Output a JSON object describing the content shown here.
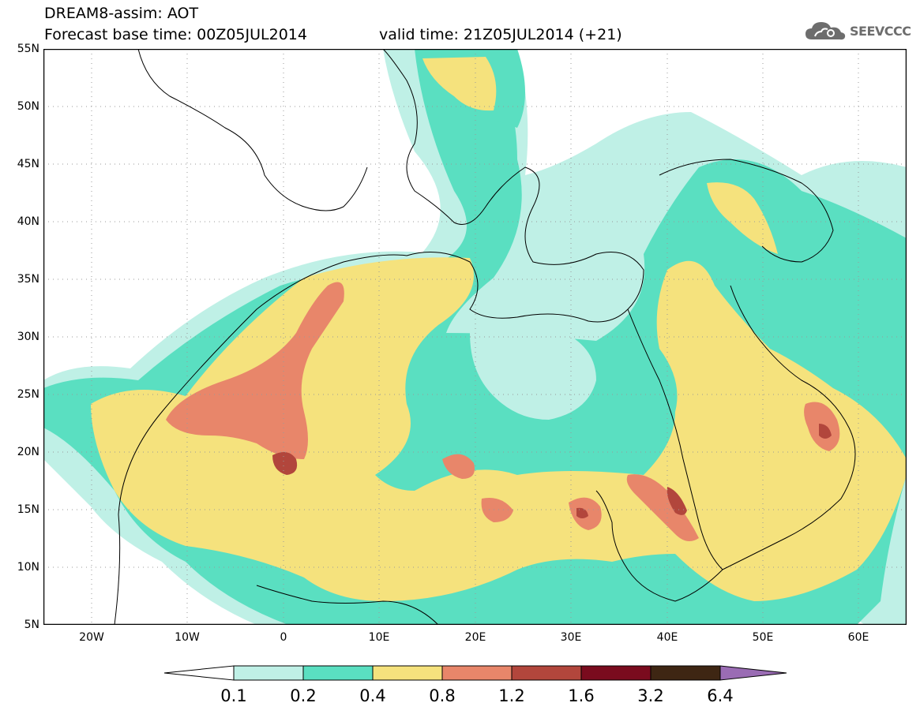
{
  "header": {
    "title_line1": "DREAM8-assim: AOT",
    "title_line2": "Forecast base time: 00Z05JUL2014",
    "valid_time": "valid time: 21Z05JUL2014 (+21)",
    "logo_text": "SEEVCCC"
  },
  "map": {
    "lat_labels": [
      "55N",
      "50N",
      "45N",
      "40N",
      "35N",
      "30N",
      "25N",
      "20N",
      "15N",
      "10N",
      "5N"
    ],
    "lon_labels": [
      "20W",
      "10W",
      "0",
      "10E",
      "20E",
      "30E",
      "40E",
      "50E",
      "60E"
    ],
    "lon_range": [
      -25,
      65
    ],
    "lat_range": [
      5,
      55
    ],
    "grid": true
  },
  "colorbar": {
    "labels": [
      "0.1",
      "0.2",
      "0.4",
      "0.8",
      "1.2",
      "1.6",
      "3.2",
      "6.4"
    ],
    "colors": [
      "#ffffff",
      "#bff0e6",
      "#5adfc1",
      "#f5e27d",
      "#e8866a",
      "#b2463c",
      "#7a0b1e",
      "#3e2613",
      "#9a6cb4"
    ]
  },
  "colors": {
    "c02": "#bff0e6",
    "c04": "#5adfc1",
    "c08": "#f5e27d",
    "c12": "#e8866a",
    "c16": "#b2463c",
    "c32": "#7a0b1e"
  }
}
